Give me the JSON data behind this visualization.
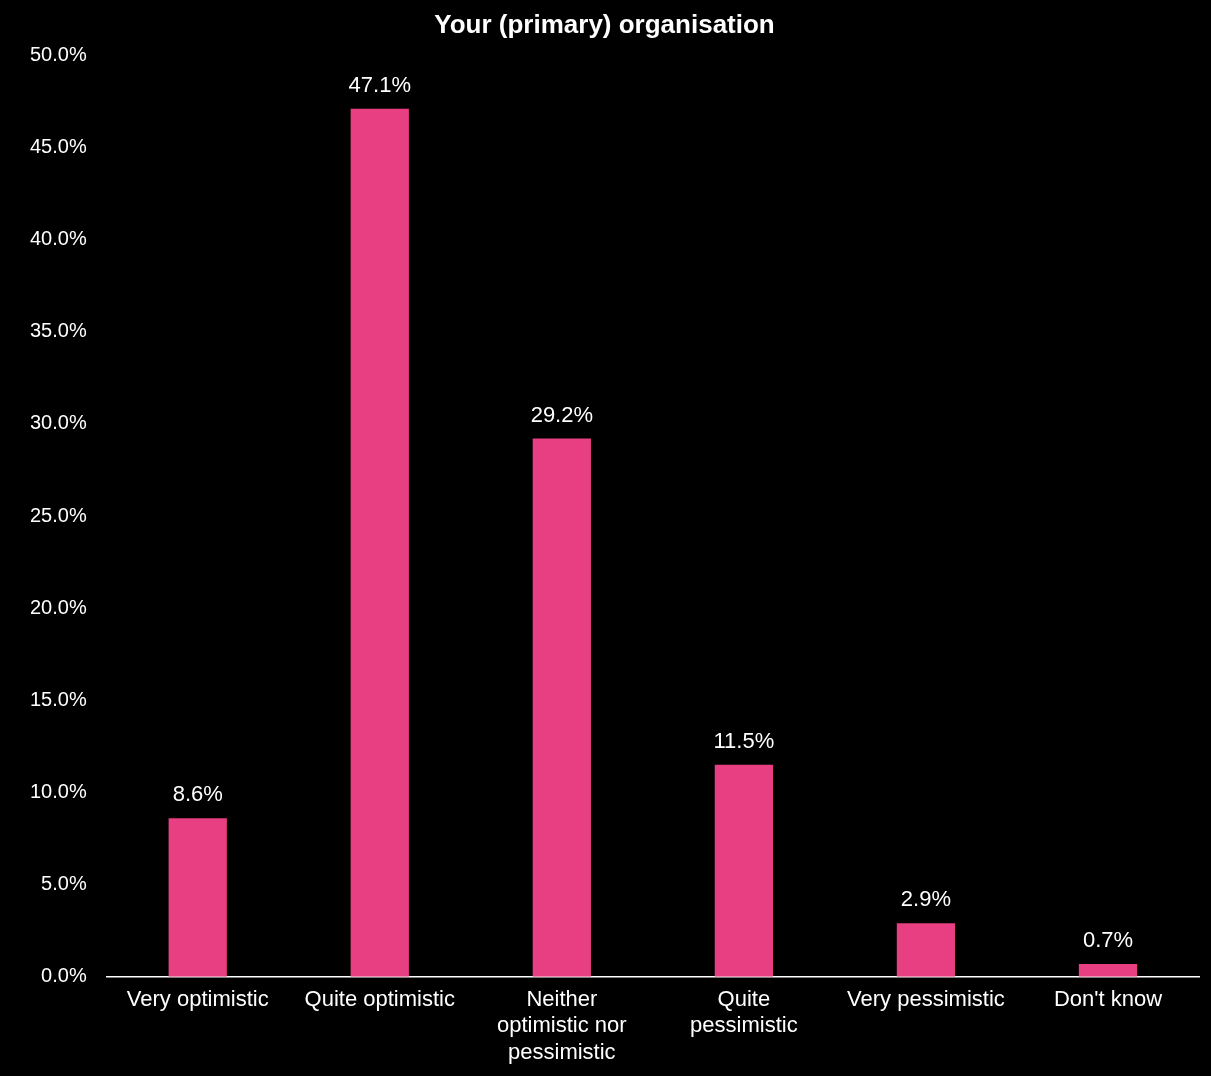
{
  "chart_data": {
    "type": "bar",
    "title": "Your (primary) organisation",
    "categories": [
      "Very optimistic",
      "Quite optimistic",
      "Neither optimistic nor pessimistic",
      "Quite pessimistic",
      "Very pessimistic",
      "Don't know"
    ],
    "values": [
      8.6,
      47.1,
      29.2,
      11.5,
      2.9,
      0.7
    ],
    "value_labels": [
      "8.6%",
      "47.1%",
      "29.2%",
      "11.5%",
      "2.9%",
      "0.7%"
    ],
    "color": "#e83e82",
    "ylim": [
      0,
      50
    ],
    "yticks": [
      {
        "value": 0,
        "label": "0.0%"
      },
      {
        "value": 5,
        "label": "5.0%"
      },
      {
        "value": 10,
        "label": "10.0%"
      },
      {
        "value": 15,
        "label": "15.0%"
      },
      {
        "value": 20,
        "label": "20.0%"
      },
      {
        "value": 25,
        "label": "25.0%"
      },
      {
        "value": 30,
        "label": "30.0%"
      },
      {
        "value": 35,
        "label": "35.0%"
      },
      {
        "value": 40,
        "label": "40.0%"
      },
      {
        "value": 45,
        "label": "45.0%"
      },
      {
        "value": 50,
        "label": "50.0%"
      }
    ],
    "grid": false,
    "legend": false
  }
}
